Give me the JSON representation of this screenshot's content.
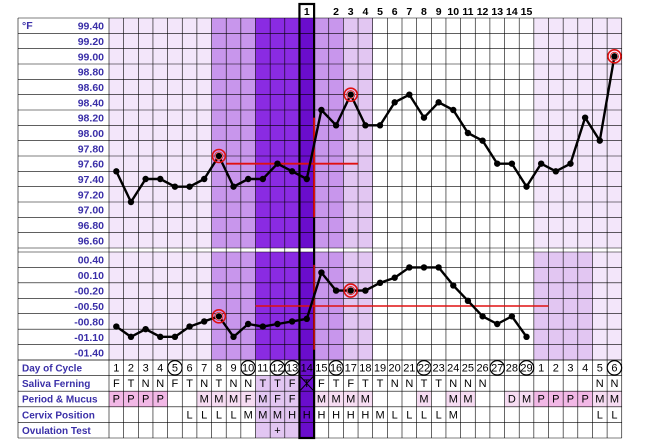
{
  "chart_data": [
    {
      "type": "line",
      "title": "",
      "unit_label": "°F",
      "y_ticks": [
        "99.40",
        "99.20",
        "99.00",
        "98.80",
        "98.60",
        "98.40",
        "98.20",
        "98.00",
        "97.80",
        "97.60",
        "97.40",
        "97.20",
        "97.00",
        "96.80",
        "96.60"
      ],
      "ylim": [
        96.5,
        99.45
      ],
      "x": [
        1,
        2,
        3,
        4,
        5,
        6,
        7,
        8,
        9,
        10,
        11,
        12,
        13,
        14,
        15,
        16,
        17,
        18,
        19,
        20,
        21,
        22,
        23,
        24,
        25,
        26,
        27,
        28,
        29,
        30,
        31,
        32,
        33,
        34,
        35
      ],
      "series": [
        {
          "values": [
            97.5,
            97.1,
            97.4,
            97.4,
            97.3,
            97.3,
            97.4,
            97.7,
            97.3,
            97.4,
            97.4,
            97.6,
            97.5,
            97.4,
            98.3,
            98.1,
            98.5,
            98.1,
            98.1,
            98.4,
            98.5,
            98.2,
            98.4,
            98.3,
            98.0,
            97.9,
            97.6,
            97.6,
            97.3,
            97.6,
            97.5,
            97.6,
            98.2,
            97.9,
            99.0
          ]
        }
      ],
      "circled_points": [
        8,
        17,
        35
      ],
      "coverline": 97.6,
      "ovulation_day": 14,
      "grid": true
    },
    {
      "type": "line",
      "title": "",
      "y_ticks": [
        "00.40",
        "00.10",
        "-00.20",
        "-00.50",
        "-00.80",
        "-01.10",
        "-01.40"
      ],
      "ylim": [
        -1.6,
        0.55
      ],
      "x": [
        1,
        2,
        3,
        4,
        5,
        6,
        7,
        8,
        9,
        10,
        11,
        12,
        13,
        14,
        15,
        16,
        17,
        18,
        19,
        20,
        21,
        22,
        23,
        24,
        25,
        26,
        27,
        28,
        29
      ],
      "series": [
        {
          "values": [
            -0.9,
            -1.1,
            -0.95,
            -1.1,
            -1.1,
            -0.9,
            -0.8,
            -0.7,
            -1.1,
            -0.85,
            -0.9,
            -0.85,
            -0.8,
            -0.75,
            0.15,
            -0.2,
            -0.2,
            -0.2,
            -0.05,
            0.05,
            0.25,
            0.25,
            0.25,
            -0.1,
            -0.4,
            -0.7,
            -0.85,
            -0.7,
            -1.1
          ]
        }
      ],
      "circled_points": [
        8,
        17
      ],
      "coverline": -0.5,
      "ovulation_day": 14,
      "grid": true
    }
  ],
  "top_axis": [
    "1",
    "2",
    "3",
    "4",
    "5",
    "6",
    "7",
    "8",
    "9",
    "10",
    "11",
    "12",
    "13",
    "14",
    "15"
  ],
  "rows": [
    {
      "label": "Day of Cycle",
      "cells": [
        "1",
        "2",
        "3",
        "4",
        "5",
        "6",
        "7",
        "8",
        "9",
        "10",
        "11",
        "12",
        "13",
        "14",
        "15",
        "16",
        "17",
        "18",
        "19",
        "20",
        "21",
        "22",
        "23",
        "24",
        "25",
        "26",
        "27",
        "28",
        "29",
        "1",
        "2",
        "3",
        "4",
        "5",
        "6"
      ]
    },
    {
      "label": "Saliva Ferning",
      "cells": [
        "F",
        "T",
        "N",
        "N",
        "F",
        "T",
        "N",
        "T",
        "N",
        "N",
        "T",
        "T",
        "F",
        "T",
        "F",
        "T",
        "F",
        "T",
        "T",
        "N",
        "N",
        "T",
        "T",
        "N",
        "N",
        "N",
        "",
        "",
        "",
        "",
        "",
        "",
        "",
        "N",
        "N"
      ]
    },
    {
      "label": "Period & Mucus",
      "cells": [
        "P",
        "P",
        "P",
        "P",
        "",
        "",
        "M",
        "M",
        "M",
        "F",
        "M",
        "F",
        "F",
        "",
        "M",
        "M",
        "M",
        "M",
        "",
        "",
        "",
        "M",
        "",
        "M",
        "M",
        "",
        "",
        "D",
        "M",
        "P",
        "P",
        "P",
        "P",
        "M",
        "M"
      ]
    },
    {
      "label": "Cervix Position",
      "cells": [
        "",
        "",
        "",
        "",
        "",
        "L",
        "L",
        "L",
        "L",
        "M",
        "M",
        "M",
        "H",
        "H",
        "H",
        "H",
        "H",
        "H",
        "M",
        "L",
        "L",
        "L",
        "L",
        "M",
        "",
        "",
        "",
        "",
        "",
        "",
        "",
        "",
        "",
        "L",
        "L"
      ]
    },
    {
      "label": "Ovulation Test",
      "cells": [
        "",
        "",
        "",
        "",
        "",
        "",
        "",
        "",
        "",
        "",
        "",
        "+",
        "",
        "",
        "",
        "",
        "",
        "",
        "",
        "",
        "",
        "",
        "",
        "",
        "",
        "",
        "",
        "",
        "",
        "",
        "",
        "",
        "",
        "",
        ""
      ]
    }
  ],
  "circled_days": [
    5,
    10,
    12,
    13,
    16,
    22,
    27,
    29,
    35
  ],
  "colors": {
    "label_text": "#3a2fa8",
    "grid": "#000000",
    "series": "#000000",
    "coverline": "#e01010",
    "circle": "#e01010",
    "ovulation_band": "#8a2be2",
    "ovulation_day": "#6a0dcc",
    "light_purple": "#f3e6fa",
    "mid_purple": "#e2c6f2",
    "deep_purple": "#c896ec",
    "pale": "#faf5fd"
  }
}
